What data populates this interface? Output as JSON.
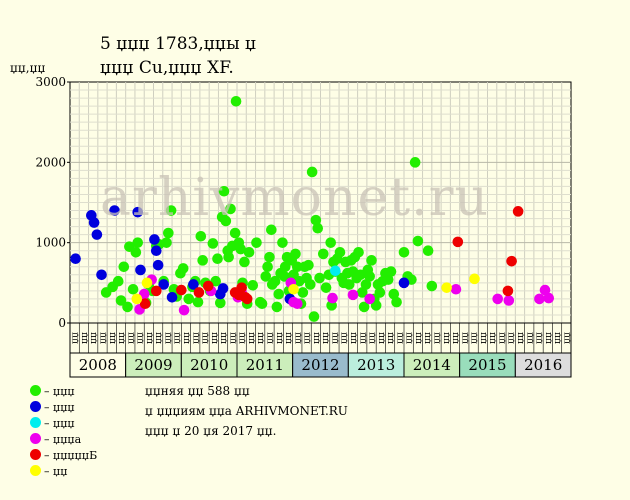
{
  "title_line1": "5  џџџ 1783,џџы џ",
  "title_line2": "џџџ Cu,џџџ XF.",
  "y_unit": "џџ,џџ",
  "watermark": "arhivmonet.ru",
  "legend": [
    {
      "label": "– џџџ",
      "color": "#22ee00"
    },
    {
      "label": "– џџџ",
      "color": "#0000dd"
    },
    {
      "label": "– џџџ",
      "color": "#00eeee"
    },
    {
      "label": "– џџџа",
      "color": "#ee00ee"
    },
    {
      "label": "– џџџџџБ",
      "color": "#ee0000"
    },
    {
      "label": "– џџ",
      "color": "#ffff00"
    }
  ],
  "notes": [
    "џџняя џџ 588 џџ",
    "џ џџџиям џџа ARHIVMONET.RU",
    "џџџ џ 20 џя 2017 џџ."
  ],
  "chart_data": {
    "type": "scatter",
    "ylim": [
      0,
      3000
    ],
    "yticks": [
      0,
      1000,
      2000,
      3000
    ],
    "grid": true,
    "years": [
      "2008",
      "2009",
      "2010",
      "2011",
      "2012",
      "2013",
      "2014",
      "2015",
      "2016"
    ],
    "year_colors": [
      "#fefee6",
      "#cceebb",
      "#cceebb",
      "#cceebb",
      "#99bbcc",
      "#bbeedd",
      "#cceebb",
      "#99ddbb",
      "#dddddd"
    ],
    "month_labels": [
      "џџ",
      "џџ",
      "џџ",
      "џџ",
      "џџ",
      "џџ",
      "џџ",
      "џџ",
      "џџ",
      "џџ",
      "џџ",
      "џџ",
      "џџ",
      "џџ",
      "џџ",
      "џџ",
      "џџ",
      "џџ",
      "џџ",
      "џџ",
      "џџ",
      "џџ",
      "џџ",
      "џџ",
      "џџ",
      "џџ",
      "џџ",
      "џџ",
      "џџ",
      "џџ",
      "џџ",
      "џџ",
      "џџ",
      "џџ",
      "џџ",
      "џџ",
      "џџ",
      "џџ",
      "џџ",
      "џџ",
      "џџ",
      "џџ",
      "џџ",
      "џџ",
      "џџ",
      "џџ",
      "џџ",
      "џџ",
      "џџ",
      "џџ",
      "џџ",
      "џџ",
      "џџ",
      "џџ"
    ],
    "series": [
      {
        "color": "#22ee00",
        "points": [
          [
            3.9,
            380
          ],
          [
            4.6,
            450
          ],
          [
            5.2,
            520
          ],
          [
            5.5,
            280
          ],
          [
            5.8,
            700
          ],
          [
            6.2,
            200
          ],
          [
            6.4,
            950
          ],
          [
            6.8,
            420
          ],
          [
            7.1,
            880
          ],
          [
            7.3,
            1000
          ],
          [
            7.9,
            300
          ],
          [
            8.2,
            250
          ],
          [
            8.5,
            480
          ],
          [
            8.9,
            400
          ],
          [
            9.3,
            960
          ],
          [
            9.6,
            980
          ],
          [
            10.1,
            520
          ],
          [
            10.4,
            1000
          ],
          [
            10.6,
            1120
          ],
          [
            10.9,
            1400
          ],
          [
            11.2,
            420
          ],
          [
            11.5,
            330
          ],
          [
            11.9,
            620
          ],
          [
            12.2,
            680
          ],
          [
            12.8,
            300
          ],
          [
            13.2,
            450
          ],
          [
            13.5,
            520
          ],
          [
            13.8,
            260
          ],
          [
            14.1,
            1080
          ],
          [
            14.3,
            780
          ],
          [
            14.6,
            500
          ],
          [
            15.1,
            400
          ],
          [
            15.4,
            990
          ],
          [
            15.7,
            520
          ],
          [
            15.9,
            800
          ],
          [
            16.2,
            250
          ],
          [
            16.4,
            1320
          ],
          [
            16.6,
            1640
          ],
          [
            16.8,
            1270
          ],
          [
            17.0,
            900
          ],
          [
            17.1,
            820
          ],
          [
            17.3,
            1420
          ],
          [
            17.5,
            960
          ],
          [
            17.8,
            1120
          ],
          [
            17.9,
            2760
          ],
          [
            18.2,
            1000
          ],
          [
            18.4,
            920
          ],
          [
            18.6,
            500
          ],
          [
            18.8,
            760
          ],
          [
            19.1,
            240
          ],
          [
            19.3,
            880
          ],
          [
            19.7,
            470
          ],
          [
            20.1,
            1000
          ],
          [
            20.5,
            260
          ],
          [
            20.7,
            240
          ],
          [
            21.1,
            580
          ],
          [
            21.3,
            700
          ],
          [
            21.5,
            820
          ],
          [
            21.7,
            1160
          ],
          [
            21.8,
            480
          ],
          [
            22.1,
            520
          ],
          [
            22.3,
            200
          ],
          [
            22.5,
            360
          ],
          [
            22.7,
            620
          ],
          [
            22.9,
            1000
          ],
          [
            23.1,
            580
          ],
          [
            23.2,
            700
          ],
          [
            23.4,
            820
          ],
          [
            23.6,
            400
          ],
          [
            23.7,
            560
          ],
          [
            23.9,
            780
          ],
          [
            24.1,
            600
          ],
          [
            24.3,
            860
          ],
          [
            24.5,
            700
          ],
          [
            24.7,
            520
          ],
          [
            24.9,
            240
          ],
          [
            25.1,
            380
          ],
          [
            25.3,
            700
          ],
          [
            25.5,
            560
          ],
          [
            25.7,
            720
          ],
          [
            25.9,
            480
          ],
          [
            26.1,
            1880
          ],
          [
            26.3,
            80
          ],
          [
            26.5,
            1280
          ],
          [
            26.7,
            1180
          ],
          [
            26.9,
            560
          ],
          [
            27.3,
            860
          ],
          [
            27.6,
            440
          ],
          [
            27.9,
            600
          ],
          [
            28.1,
            1000
          ],
          [
            28.2,
            220
          ],
          [
            28.4,
            760
          ],
          [
            28.6,
            640
          ],
          [
            28.8,
            800
          ],
          [
            29.1,
            880
          ],
          [
            29.3,
            560
          ],
          [
            29.5,
            500
          ],
          [
            29.7,
            760
          ],
          [
            29.9,
            620
          ],
          [
            30.1,
            480
          ],
          [
            30.3,
            780
          ],
          [
            30.5,
            640
          ],
          [
            30.7,
            820
          ],
          [
            30.9,
            560
          ],
          [
            31.1,
            880
          ],
          [
            31.3,
            600
          ],
          [
            31.5,
            380
          ],
          [
            31.7,
            200
          ],
          [
            31.9,
            480
          ],
          [
            32.1,
            660
          ],
          [
            32.3,
            580
          ],
          [
            32.5,
            780
          ],
          [
            32.8,
            300
          ],
          [
            33.0,
            220
          ],
          [
            33.2,
            480
          ],
          [
            33.4,
            380
          ],
          [
            33.7,
            520
          ],
          [
            34.0,
            620
          ],
          [
            34.3,
            540
          ],
          [
            34.6,
            640
          ],
          [
            34.9,
            360
          ],
          [
            35.2,
            260
          ],
          [
            36.0,
            880
          ],
          [
            36.4,
            580
          ],
          [
            36.8,
            540
          ],
          [
            37.2,
            2000
          ],
          [
            37.5,
            1020
          ],
          [
            38.6,
            900
          ],
          [
            39.0,
            460
          ]
        ]
      },
      {
        "color": "#0000dd",
        "points": [
          [
            0.6,
            800
          ],
          [
            2.3,
            1340
          ],
          [
            2.6,
            1250
          ],
          [
            2.9,
            1100
          ],
          [
            3.4,
            600
          ],
          [
            4.8,
            1400
          ],
          [
            7.3,
            1380
          ],
          [
            7.6,
            660
          ],
          [
            9.1,
            1040
          ],
          [
            9.3,
            900
          ],
          [
            9.5,
            720
          ],
          [
            10.1,
            480
          ],
          [
            11.0,
            320
          ],
          [
            13.3,
            480
          ],
          [
            16.2,
            360
          ],
          [
            16.5,
            430
          ],
          [
            23.7,
            300
          ],
          [
            36.0,
            500
          ]
        ]
      },
      {
        "color": "#00eeee",
        "points": [
          [
            28.6,
            650
          ]
        ]
      },
      {
        "color": "#ee00ee",
        "points": [
          [
            7.5,
            170
          ],
          [
            8.0,
            360
          ],
          [
            8.8,
            540
          ],
          [
            12.3,
            160
          ],
          [
            15.2,
            400
          ],
          [
            18.1,
            320
          ],
          [
            18.5,
            380
          ],
          [
            23.8,
            500
          ],
          [
            24.1,
            260
          ],
          [
            24.5,
            240
          ],
          [
            28.3,
            310
          ],
          [
            30.5,
            350
          ],
          [
            32.3,
            300
          ],
          [
            41.6,
            420
          ],
          [
            46.1,
            300
          ],
          [
            47.3,
            280
          ],
          [
            50.6,
            300
          ],
          [
            51.2,
            410
          ],
          [
            51.6,
            310
          ]
        ]
      },
      {
        "color": "#ee0000",
        "points": [
          [
            8.1,
            240
          ],
          [
            9.3,
            400
          ],
          [
            12.0,
            410
          ],
          [
            13.9,
            380
          ],
          [
            14.9,
            460
          ],
          [
            17.8,
            380
          ],
          [
            18.2,
            350
          ],
          [
            18.5,
            440
          ],
          [
            18.9,
            320
          ],
          [
            19.1,
            300
          ],
          [
            41.8,
            1010
          ],
          [
            47.2,
            400
          ],
          [
            47.6,
            770
          ],
          [
            48.3,
            1390
          ]
        ]
      },
      {
        "color": "#ffff00",
        "points": [
          [
            7.2,
            300
          ],
          [
            8.3,
            500
          ],
          [
            24.1,
            420
          ],
          [
            40.6,
            440
          ],
          [
            43.6,
            550
          ]
        ]
      }
    ]
  }
}
